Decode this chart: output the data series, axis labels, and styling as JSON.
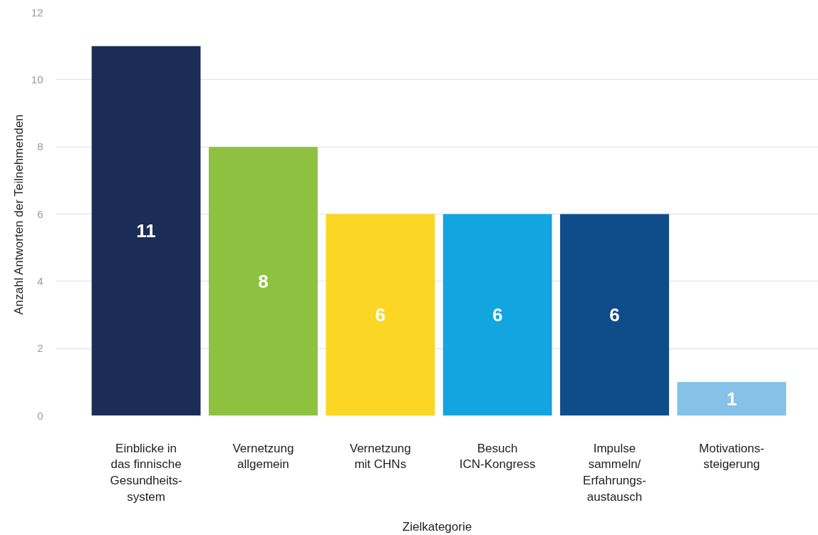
{
  "chart_data": {
    "type": "bar",
    "xlabel": "Zielkategorie",
    "ylabel": "Anzahl Antworten der Teilnehmenden",
    "categories": [
      "Einblicke in\ndas finnische\nGesundheits-\nsystem",
      "Vernetzung\nallgemein",
      "Vernetzung\nmit CHNs",
      "Besuch\nICN-Kongress",
      "Impulse\nsammeln/\nErfahrungs-\naustausch",
      "Motivations-\nsteigerung"
    ],
    "values": [
      11,
      8,
      6,
      6,
      6,
      1
    ],
    "colors": [
      "#1b2d56",
      "#8dc13f",
      "#fbd624",
      "#13a5df",
      "#0f4c8a",
      "#86c1e8"
    ],
    "ylim": [
      0,
      12
    ],
    "yticks": [
      0,
      2,
      4,
      6,
      8,
      10,
      12
    ],
    "grid": "y",
    "data_labels": true
  }
}
